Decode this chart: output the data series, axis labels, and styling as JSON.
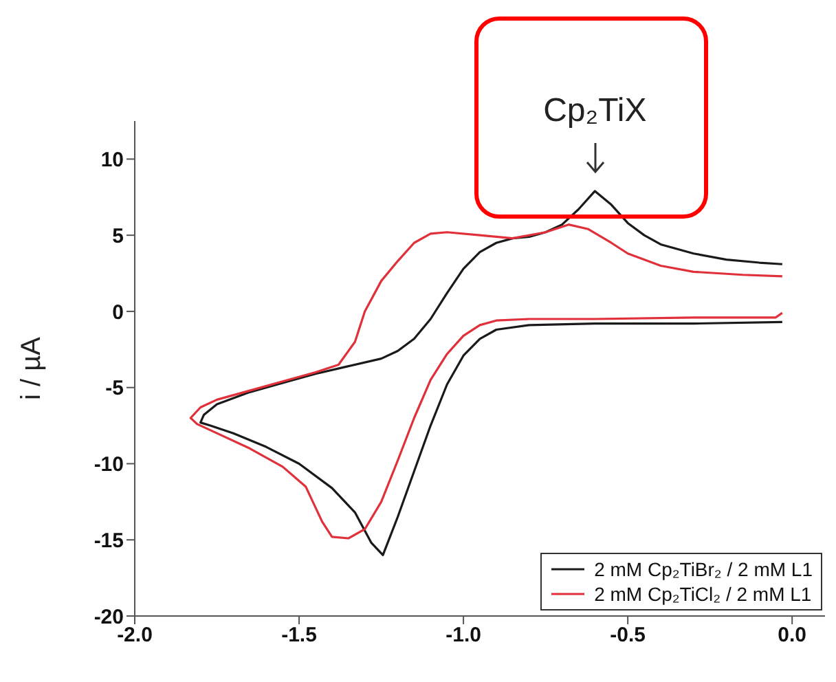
{
  "chart_data": {
    "type": "line",
    "ylabel": "i / µA",
    "xlim": [
      -2.0,
      0.1
    ],
    "xticks": [
      {
        "value": -2,
        "label": "-2.0"
      },
      {
        "value": -1.5,
        "label": "-1.5"
      },
      {
        "value": -1,
        "label": "-1.0"
      },
      {
        "value": -0.5,
        "label": "-0.5"
      },
      {
        "value": 0,
        "label": "0.0"
      }
    ],
    "ylim": [
      -20,
      12.5
    ],
    "yticks": [
      -20,
      -15,
      -10,
      -5,
      0,
      5,
      10
    ],
    "legend": "bottom right",
    "grid": false,
    "marker": "none",
    "line_style": "solid",
    "annotations": [
      {
        "text": "Cp₂TiX",
        "x": -0.6,
        "y": 7.9
      }
    ],
    "series": [
      {
        "name": "2 mM Cp₂TiBr₂ / 2 mM L1",
        "color": "#1a1a1a",
        "x": [
          -0.03,
          -0.3,
          -0.6,
          -0.8,
          -0.9,
          -0.95,
          -1.0,
          -1.05,
          -1.1,
          -1.15,
          -1.2,
          -1.245,
          -1.28,
          -1.33,
          -1.4,
          -1.5,
          -1.6,
          -1.7,
          -1.77,
          -1.8,
          -1.79,
          -1.75,
          -1.65,
          -1.55,
          -1.45,
          -1.35,
          -1.25,
          -1.2,
          -1.15,
          -1.1,
          -1.05,
          -1.0,
          -0.95,
          -0.9,
          -0.85,
          -0.8,
          -0.75,
          -0.7,
          -0.65,
          -0.6,
          -0.55,
          -0.5,
          -0.45,
          -0.4,
          -0.3,
          -0.2,
          -0.1,
          -0.03
        ],
        "values": [
          -0.7,
          -0.8,
          -0.8,
          -0.9,
          -1.2,
          -1.8,
          -2.9,
          -4.8,
          -7.5,
          -10.5,
          -13.5,
          -16.0,
          -15.2,
          -13.2,
          -11.6,
          -10.0,
          -8.9,
          -8.0,
          -7.5,
          -7.3,
          -6.8,
          -6.1,
          -5.3,
          -4.7,
          -4.1,
          -3.6,
          -3.1,
          -2.6,
          -1.8,
          -0.5,
          1.2,
          2.8,
          3.9,
          4.5,
          4.8,
          4.9,
          5.2,
          5.7,
          6.7,
          7.9,
          7.0,
          5.8,
          5.0,
          4.4,
          3.8,
          3.4,
          3.2,
          3.1
        ]
      },
      {
        "name": "2 mM Cp₂TiCl₂ / 2 mM L1",
        "color": "#e0303a",
        "x": [
          -0.03,
          -0.05,
          -0.3,
          -0.6,
          -0.8,
          -0.9,
          -0.95,
          -1.0,
          -1.05,
          -1.1,
          -1.15,
          -1.2,
          -1.25,
          -1.3,
          -1.35,
          -1.4,
          -1.43,
          -1.48,
          -1.55,
          -1.65,
          -1.75,
          -1.81,
          -1.83,
          -1.8,
          -1.75,
          -1.65,
          -1.55,
          -1.45,
          -1.38,
          -1.33,
          -1.3,
          -1.25,
          -1.2,
          -1.15,
          -1.1,
          -1.05,
          -0.95,
          -0.85,
          -0.75,
          -0.68,
          -0.62,
          -0.55,
          -0.5,
          -0.4,
          -0.3,
          -0.15,
          -0.03
        ],
        "values": [
          -0.1,
          -0.4,
          -0.4,
          -0.5,
          -0.5,
          -0.6,
          -0.9,
          -1.6,
          -2.8,
          -4.5,
          -7.0,
          -9.8,
          -12.5,
          -14.3,
          -14.9,
          -14.8,
          -13.8,
          -11.5,
          -10.2,
          -9.0,
          -8.0,
          -7.4,
          -7.0,
          -6.3,
          -5.8,
          -5.2,
          -4.6,
          -4.0,
          -3.5,
          -2.0,
          0,
          2.0,
          3.3,
          4.5,
          5.1,
          5.2,
          5.0,
          4.8,
          5.2,
          5.7,
          5.4,
          4.5,
          3.8,
          3.0,
          2.6,
          2.4,
          2.3
        ]
      }
    ]
  }
}
